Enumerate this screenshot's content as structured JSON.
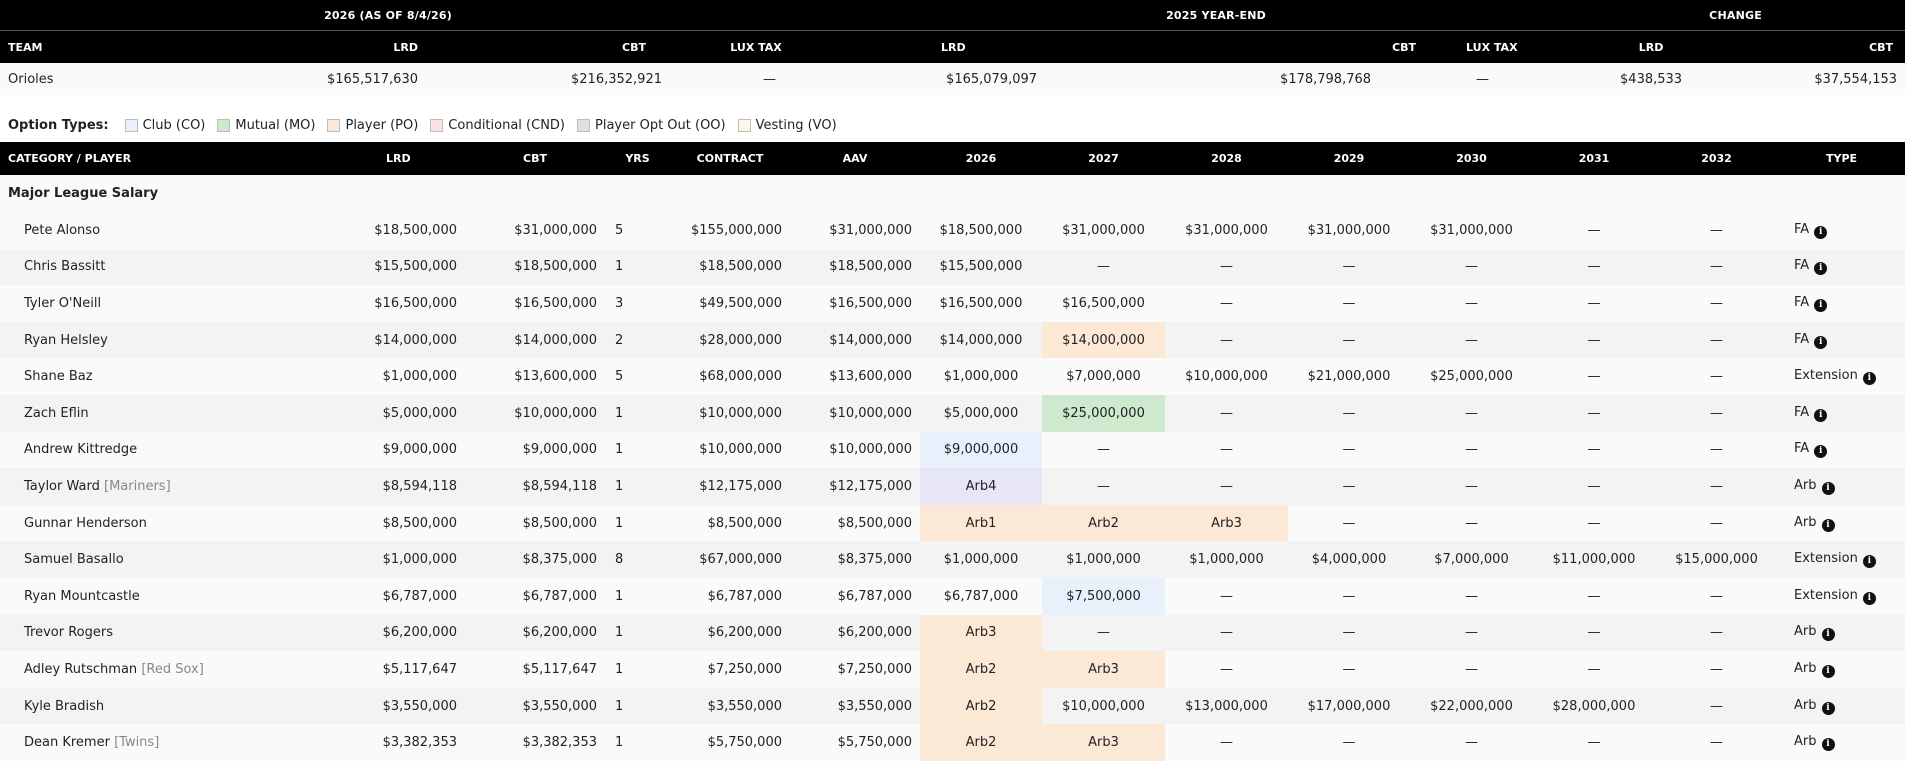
{
  "summary": {
    "groups": [
      "2026 (AS OF 8/4/26)",
      "2025 YEAR-END",
      "CHANGE"
    ],
    "headers": [
      "TEAM",
      "LRD",
      "CBT",
      "LUX TAX",
      "LRD",
      "CBT",
      "LUX TAX",
      "LRD",
      "CBT"
    ],
    "row": [
      "Orioles",
      "$165,517,630",
      "$216,352,921",
      "—",
      "$165,079,097",
      "$178,798,768",
      "—",
      "$438,533",
      "$37,554,153"
    ]
  },
  "legend": {
    "lead": "Option Types:",
    "items": [
      {
        "label": "Club (CO)",
        "color": "#e8f1fb"
      },
      {
        "label": "Mutual (MO)",
        "color": "#cfe9cf"
      },
      {
        "label": "Player (PO)",
        "color": "#fbe9d6"
      },
      {
        "label": "Conditional (CND)",
        "color": "#fbe1e1"
      },
      {
        "label": "Player Opt Out (OO)",
        "color": "#e0e0e0"
      },
      {
        "label": "Vesting (VO)",
        "color": "#fdf8e6"
      }
    ]
  },
  "main": {
    "headers": [
      "CATEGORY / PLAYER",
      "LRD",
      "CBT",
      "YRS",
      "CONTRACT",
      "AAV",
      "2026",
      "2027",
      "2028",
      "2029",
      "2030",
      "2031",
      "2032",
      "TYPE"
    ],
    "category": "Major League Salary",
    "info_glyph": "i",
    "players": [
      {
        "name": "Pete Alonso",
        "team": "",
        "lrd": "$18,500,000",
        "cbt": "$31,000,000",
        "yrs": "5",
        "contract": "$155,000,000",
        "aav": "$31,000,000",
        "years": [
          "$18,500,000",
          "$31,000,000",
          "$31,000,000",
          "$31,000,000",
          "$31,000,000",
          "—",
          "—"
        ],
        "type": "FA"
      },
      {
        "name": "Chris Bassitt",
        "team": "",
        "lrd": "$15,500,000",
        "cbt": "$18,500,000",
        "yrs": "1",
        "contract": "$18,500,000",
        "aav": "$18,500,000",
        "years": [
          "$15,500,000",
          "—",
          "—",
          "—",
          "—",
          "—",
          "—"
        ],
        "type": "FA"
      },
      {
        "name": "Tyler O'Neill",
        "team": "",
        "lrd": "$16,500,000",
        "cbt": "$16,500,000",
        "yrs": "3",
        "contract": "$49,500,000",
        "aav": "$16,500,000",
        "years": [
          "$16,500,000",
          "$16,500,000",
          "—",
          "—",
          "—",
          "—",
          "—"
        ],
        "type": "FA"
      },
      {
        "name": "Ryan Helsley",
        "team": "",
        "lrd": "$14,000,000",
        "cbt": "$14,000,000",
        "yrs": "2",
        "contract": "$28,000,000",
        "aav": "$14,000,000",
        "years": [
          "$14,000,000",
          "$14,000,000",
          "—",
          "—",
          "—",
          "—",
          "—"
        ],
        "type": "FA"
      },
      {
        "name": "Shane Baz",
        "team": "",
        "lrd": "$1,000,000",
        "cbt": "$13,600,000",
        "yrs": "5",
        "contract": "$68,000,000",
        "aav": "$13,600,000",
        "years": [
          "$1,000,000",
          "$7,000,000",
          "$10,000,000",
          "$21,000,000",
          "$25,000,000",
          "—",
          "—"
        ],
        "type": "Extension"
      },
      {
        "name": "Zach Eflin",
        "team": "",
        "lrd": "$5,000,000",
        "cbt": "$10,000,000",
        "yrs": "1",
        "contract": "$10,000,000",
        "aav": "$10,000,000",
        "years": [
          "$5,000,000",
          "$25,000,000",
          "—",
          "—",
          "—",
          "—",
          "—"
        ],
        "type": "FA"
      },
      {
        "name": "Andrew Kittredge",
        "team": "",
        "lrd": "$9,000,000",
        "cbt": "$9,000,000",
        "yrs": "1",
        "contract": "$10,000,000",
        "aav": "$10,000,000",
        "years": [
          "$9,000,000",
          "—",
          "—",
          "—",
          "—",
          "—",
          "—"
        ],
        "type": "FA"
      },
      {
        "name": "Taylor Ward",
        "team": "[Mariners]",
        "lrd": "$8,594,118",
        "cbt": "$8,594,118",
        "yrs": "1",
        "contract": "$12,175,000",
        "aav": "$12,175,000",
        "years": [
          "Arb4",
          "—",
          "—",
          "—",
          "—",
          "—",
          "—"
        ],
        "type": "Arb"
      },
      {
        "name": "Gunnar Henderson",
        "team": "",
        "lrd": "$8,500,000",
        "cbt": "$8,500,000",
        "yrs": "1",
        "contract": "$8,500,000",
        "aav": "$8,500,000",
        "years": [
          "Arb1",
          "Arb2",
          "Arb3",
          "—",
          "—",
          "—",
          "—"
        ],
        "type": "Arb"
      },
      {
        "name": "Samuel Basallo",
        "team": "",
        "lrd": "$1,000,000",
        "cbt": "$8,375,000",
        "yrs": "8",
        "contract": "$67,000,000",
        "aav": "$8,375,000",
        "years": [
          "$1,000,000",
          "$1,000,000",
          "$1,000,000",
          "$4,000,000",
          "$7,000,000",
          "$11,000,000",
          "$15,000,000"
        ],
        "type": "Extension"
      },
      {
        "name": "Ryan Mountcastle",
        "team": "",
        "lrd": "$6,787,000",
        "cbt": "$6,787,000",
        "yrs": "1",
        "contract": "$6,787,000",
        "aav": "$6,787,000",
        "years": [
          "$6,787,000",
          "$7,500,000",
          "—",
          "—",
          "—",
          "—",
          "—"
        ],
        "type": "Extension"
      },
      {
        "name": "Trevor Rogers",
        "team": "",
        "lrd": "$6,200,000",
        "cbt": "$6,200,000",
        "yrs": "1",
        "contract": "$6,200,000",
        "aav": "$6,200,000",
        "years": [
          "Arb3",
          "—",
          "—",
          "—",
          "—",
          "—",
          "—"
        ],
        "type": "Arb"
      },
      {
        "name": "Adley Rutschman",
        "team": "[Red Sox]",
        "lrd": "$5,117,647",
        "cbt": "$5,117,647",
        "yrs": "1",
        "contract": "$7,250,000",
        "aav": "$7,250,000",
        "years": [
          "Arb2",
          "Arb3",
          "—",
          "—",
          "—",
          "—",
          "—"
        ],
        "type": "Arb"
      },
      {
        "name": "Kyle Bradish",
        "team": "",
        "lrd": "$3,550,000",
        "cbt": "$3,550,000",
        "yrs": "1",
        "contract": "$3,550,000",
        "aav": "$3,550,000",
        "years": [
          "Arb2",
          "$10,000,000",
          "$13,000,000",
          "$17,000,000",
          "$22,000,000",
          "$28,000,000",
          "—"
        ],
        "type": "Arb"
      },
      {
        "name": "Dean Kremer",
        "team": "[Twins]",
        "lrd": "$3,382,353",
        "cbt": "$3,382,353",
        "yrs": "1",
        "contract": "$5,750,000",
        "aav": "$5,750,000",
        "years": [
          "Arb2",
          "Arb3",
          "—",
          "—",
          "—",
          "—",
          "—"
        ],
        "type": "Arb"
      }
    ]
  }
}
